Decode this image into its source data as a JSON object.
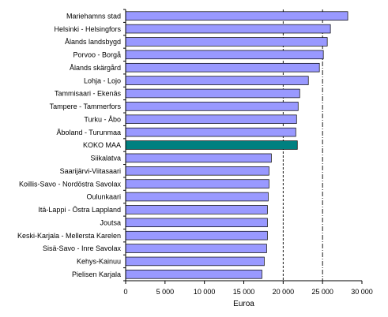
{
  "chart_data": {
    "type": "bar",
    "orientation": "horizontal",
    "categories": [
      "Mariehamns stad",
      "Helsinki - Helsingfors",
      "Ålands landsbygd",
      "Porvoo - Borgå",
      "Ålands skärgård",
      "Lohja - Lojo",
      "Tammisaari - Ekenäs",
      "Tampere - Tammerfors",
      "Turku - Åbo",
      "Åboland - Turunmaa",
      "KOKO MAA",
      "Siikalatva",
      "Saarijärvi-Viitasaari",
      "Koillis-Savo - Nordöstra Savolax",
      "Oulunkaari",
      "Itä-Lappi - Östra Lappland",
      "Joutsa",
      "Keski-Karjala - Mellersta Karelen",
      "Sisä-Savo - Inre Savolax",
      "Kehys-Kainuu",
      "Pielisen Karjala"
    ],
    "values": [
      28200,
      26000,
      25600,
      25100,
      24600,
      23200,
      22100,
      21900,
      21700,
      21600,
      21800,
      18500,
      18200,
      18200,
      18100,
      18000,
      18000,
      18000,
      17900,
      17600,
      17300
    ],
    "highlight_category": "KOKO MAA",
    "xlabel": "Euroa",
    "ylabel": "",
    "title": "",
    "xlim": [
      0,
      30000
    ],
    "xticks": [
      0,
      5000,
      10000,
      15000,
      20000,
      25000,
      30000
    ],
    "xtick_labels": [
      "0",
      "5 000",
      "10 000",
      "15 000",
      "20 000",
      "25 000",
      "30 000"
    ],
    "reference_lines": [
      20000,
      25000
    ],
    "grid": false,
    "legend": "none",
    "colors": {
      "bar": "#9999ff",
      "highlight": "#008080",
      "bar_edge": "#000000",
      "axis": "#000000",
      "reference_line": "#000000"
    }
  }
}
